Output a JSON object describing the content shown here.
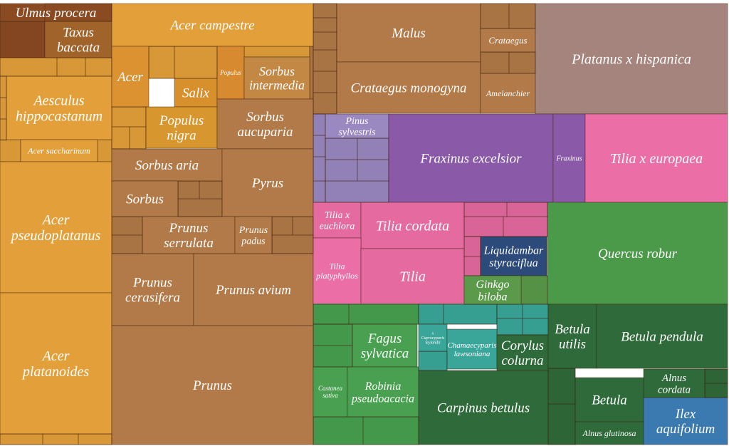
{
  "chart_data": {
    "type": "treemap",
    "title": "",
    "units": "",
    "colors": {
      "Sapindaceae": "#e3a03a",
      "Taxus": "#a0642a",
      "Ulmus": "#8a4a22",
      "Rosaceae": "#b27a48",
      "Platanus": "#a6847e",
      "Oleaceae": "#8a5aa8",
      "Pinus": "#9a88c0",
      "Malvaceae": "#e46aa0",
      "Tilia x europaea": "#ec6ea6",
      "Quercus": "#4a9a4a",
      "Fagales": "#2f6a3a",
      "Fabaceae": "#48a050",
      "Cupressaceae": "#3aa69a",
      "Altingiaceae": "#2c4a7a",
      "Aquifoliaceae": "#3a7ab0",
      "Ginkgo": "#5a9a4a"
    },
    "items": [
      {
        "label": "Ulmus procera",
        "value": 56,
        "group": "Ulmus"
      },
      {
        "label": "Taxus baccata",
        "value": 47,
        "group": "Taxus"
      },
      {
        "label": "Aesculus hippocastanum",
        "value": 143,
        "group": "Sapindaceae"
      },
      {
        "label": "Acer saccharinum",
        "value": 26,
        "group": "Sapindaceae"
      },
      {
        "label": "Acer pseudoplatanus",
        "value": 283,
        "group": "Sapindaceae"
      },
      {
        "label": "Acer platanoides",
        "value": 306,
        "group": "Sapindaceae"
      },
      {
        "label": "Acer campestre",
        "value": 80,
        "group": "Sapindaceae"
      },
      {
        "label": "Acer",
        "value": 31,
        "group": "Sapindaceae"
      },
      {
        "label": "Salix",
        "value": 16,
        "group": "Rosaceae"
      },
      {
        "label": "Populus",
        "value": 6,
        "group": "Rosaceae"
      },
      {
        "label": "Sorbus intermedia",
        "value": 24,
        "group": "Rosaceae"
      },
      {
        "label": "Populus nigra",
        "value": 37,
        "group": "Rosaceae"
      },
      {
        "label": "Sorbus aucuparia",
        "value": 55,
        "group": "Rosaceae"
      },
      {
        "label": "Sorbus aria",
        "value": 45,
        "group": "Rosaceae"
      },
      {
        "label": "Sorbus",
        "value": 25,
        "group": "Rosaceae"
      },
      {
        "label": "Pyrus",
        "value": 78,
        "group": "Rosaceae"
      },
      {
        "label": "Prunus serrulata",
        "value": 44,
        "group": "Rosaceae"
      },
      {
        "label": "Prunus padus",
        "value": 12,
        "group": "Rosaceae"
      },
      {
        "label": "Prunus cerasifera",
        "value": 68,
        "group": "Rosaceae"
      },
      {
        "label": "Prunus avium",
        "value": 89,
        "group": "Rosaceae"
      },
      {
        "label": "Prunus",
        "value": 212,
        "group": "Rosaceae"
      },
      {
        "label": "Malus",
        "value": 55,
        "group": "Rosaceae"
      },
      {
        "label": "Crataegus monogyna",
        "value": 81,
        "group": "Rosaceae"
      },
      {
        "label": "Crataegus",
        "value": 11,
        "group": "Rosaceae"
      },
      {
        "label": "Amelanchier",
        "value": 14,
        "group": "Rosaceae"
      },
      {
        "label": "Platanus x hispanica",
        "value": 178,
        "group": "Platanus"
      },
      {
        "label": "Pinus sylvestris",
        "value": 17,
        "group": "Pinus"
      },
      {
        "label": "Fraxinus excelsior",
        "value": 165,
        "group": "Oleaceae"
      },
      {
        "label": "Fraxinus",
        "value": 11,
        "group": "Oleaceae"
      },
      {
        "label": "Tilia x europaea",
        "value": 117,
        "group": "Tilia x europaea"
      },
      {
        "label": "Tilia x euchlora",
        "value": 27,
        "group": "Malvaceae"
      },
      {
        "label": "Tilia cordata",
        "value": 56,
        "group": "Malvaceae"
      },
      {
        "label": "Tilia platyphyllos",
        "value": 31,
        "group": "Malvaceae"
      },
      {
        "label": "Tilia",
        "value": 73,
        "group": "Malvaceae"
      },
      {
        "label": "Liquidambar styraciflua",
        "value": 17,
        "group": "Altingiaceae"
      },
      {
        "label": "Ginkgo biloba",
        "value": 10,
        "group": "Ginkgo"
      },
      {
        "label": "Quercus robur",
        "value": 164,
        "group": "Quercus"
      },
      {
        "label": "Fagus sylvatica",
        "value": 48,
        "group": "Fabaceae"
      },
      {
        "label": "x Cuprocyparis leylandii",
        "value": 6,
        "group": "Cupressaceae"
      },
      {
        "label": "Chamaecyparis lawsoniana",
        "value": 24,
        "group": "Cupressaceae"
      },
      {
        "label": "Corylus colurna",
        "value": 24,
        "group": "Fagales"
      },
      {
        "label": "Betula utilis",
        "value": 18,
        "group": "Fagales"
      },
      {
        "label": "Betula pendula",
        "value": 76,
        "group": "Fagales"
      },
      {
        "label": "Castanea sativa",
        "value": 11,
        "group": "Fabaceae"
      },
      {
        "label": "Robinia pseudoacacia",
        "value": 30,
        "group": "Fabaceae"
      },
      {
        "label": "Carpinus betulus",
        "value": 79,
        "group": "Fagales"
      },
      {
        "label": "Betula",
        "value": 39,
        "group": "Fagales"
      },
      {
        "label": "Alnus cordata",
        "value": 16,
        "group": "Fagales"
      },
      {
        "label": "Alnus glutinosa",
        "value": 13,
        "group": "Fagales"
      },
      {
        "label": "Ilex aquifolium",
        "value": 22,
        "group": "Aquifoliaceae"
      }
    ]
  }
}
